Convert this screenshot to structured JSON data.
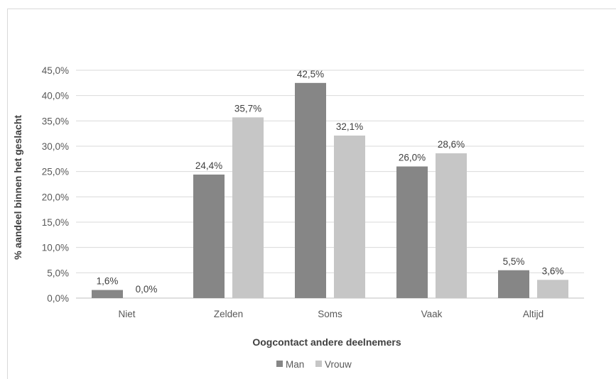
{
  "chart_data": {
    "type": "bar",
    "categories": [
      "Niet",
      "Zelden",
      "Soms",
      "Vaak",
      "Altijd"
    ],
    "series": [
      {
        "name": "Man",
        "values": [
          1.6,
          24.4,
          42.5,
          26.0,
          5.5
        ],
        "labels": [
          "1,6%",
          "24,4%",
          "42,5%",
          "26,0%",
          "5,5%"
        ],
        "color": "#868686"
      },
      {
        "name": "Vrouw",
        "values": [
          0.0,
          35.7,
          32.1,
          28.6,
          3.6
        ],
        "labels": [
          "0,0%",
          "35,7%",
          "32,1%",
          "28,6%",
          "3,6%"
        ],
        "color": "#c6c6c6"
      }
    ],
    "xlabel": "Oogcontact andere deelnemers",
    "ylabel": "% aandeel binnen het geslacht",
    "ylim": [
      0,
      45
    ],
    "yticks": [
      "0,0%",
      "5,0%",
      "10,0%",
      "15,0%",
      "20,0%",
      "25,0%",
      "30,0%",
      "35,0%",
      "40,0%",
      "45,0%"
    ],
    "grid": true,
    "legend": "bottom"
  }
}
